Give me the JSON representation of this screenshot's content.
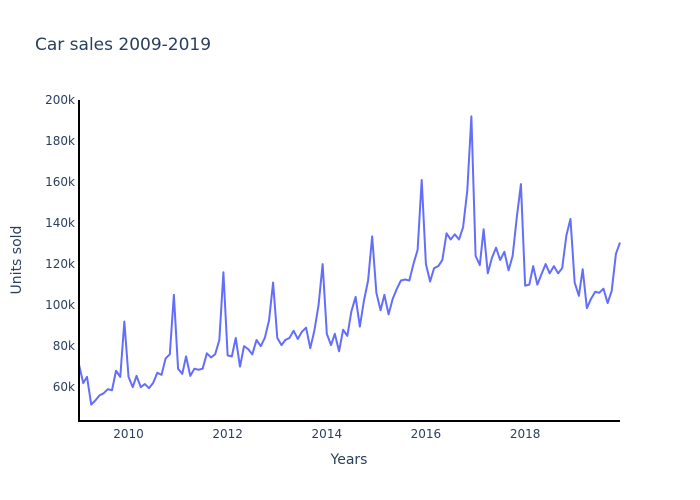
{
  "chart_data": {
    "type": "line",
    "title": "Car sales 2009-2019",
    "xlabel": "Years",
    "ylabel": "Units sold",
    "line_color": "#636efa",
    "axis_color": "#000000",
    "text_color": "#2a3f5f",
    "grid": false,
    "xlim": [
      "2009-01-01",
      "2019-12-01"
    ],
    "ylim": [
      43500,
      200000
    ],
    "x_ticks": [
      "2010",
      "2012",
      "2014",
      "2016",
      "2018"
    ],
    "y_ticks": [
      "60k",
      "80k",
      "100k",
      "120k",
      "140k",
      "160k",
      "180k",
      "200k"
    ],
    "x": [
      "2009-01",
      "2009-02",
      "2009-03",
      "2009-04",
      "2009-05",
      "2009-06",
      "2009-07",
      "2009-08",
      "2009-09",
      "2009-10",
      "2009-11",
      "2009-12",
      "2010-01",
      "2010-02",
      "2010-03",
      "2010-04",
      "2010-05",
      "2010-06",
      "2010-07",
      "2010-08",
      "2010-09",
      "2010-10",
      "2010-11",
      "2010-12",
      "2011-01",
      "2011-02",
      "2011-03",
      "2011-04",
      "2011-05",
      "2011-06",
      "2011-07",
      "2011-08",
      "2011-09",
      "2011-10",
      "2011-11",
      "2011-12",
      "2012-01",
      "2012-02",
      "2012-03",
      "2012-04",
      "2012-05",
      "2012-06",
      "2012-07",
      "2012-08",
      "2012-09",
      "2012-10",
      "2012-11",
      "2012-12",
      "2013-01",
      "2013-02",
      "2013-03",
      "2013-04",
      "2013-05",
      "2013-06",
      "2013-07",
      "2013-08",
      "2013-09",
      "2013-10",
      "2013-11",
      "2013-12",
      "2014-01",
      "2014-02",
      "2014-03",
      "2014-04",
      "2014-05",
      "2014-06",
      "2014-07",
      "2014-08",
      "2014-09",
      "2014-10",
      "2014-11",
      "2014-12",
      "2015-01",
      "2015-02",
      "2015-03",
      "2015-04",
      "2015-05",
      "2015-06",
      "2015-07",
      "2015-08",
      "2015-09",
      "2015-10",
      "2015-11",
      "2015-12",
      "2016-01",
      "2016-02",
      "2016-03",
      "2016-04",
      "2016-05",
      "2016-06",
      "2016-07",
      "2016-08",
      "2016-09",
      "2016-10",
      "2016-11",
      "2016-12",
      "2017-01",
      "2017-02",
      "2017-03",
      "2017-04",
      "2017-05",
      "2017-06",
      "2017-07",
      "2017-08",
      "2017-09",
      "2017-10",
      "2017-11",
      "2017-12",
      "2018-01",
      "2018-02",
      "2018-03",
      "2018-04",
      "2018-05",
      "2018-06",
      "2018-07",
      "2018-08",
      "2018-09",
      "2018-10",
      "2018-11",
      "2018-12",
      "2019-01",
      "2019-02",
      "2019-03",
      "2019-04",
      "2019-05",
      "2019-06",
      "2019-07",
      "2019-08",
      "2019-09",
      "2019-10",
      "2019-11",
      "2019-12"
    ],
    "y": [
      71000,
      62000,
      65000,
      51500,
      53500,
      56000,
      57000,
      59000,
      58500,
      68000,
      65000,
      92000,
      65000,
      60000,
      65500,
      60000,
      61500,
      59500,
      62000,
      67000,
      66000,
      74000,
      76000,
      105000,
      69000,
      66500,
      75000,
      65500,
      69000,
      68500,
      69000,
      76500,
      74500,
      76000,
      83000,
      116000,
      75500,
      75000,
      84000,
      70000,
      80000,
      78500,
      76000,
      83000,
      80000,
      84000,
      92500,
      111000,
      84000,
      80500,
      83000,
      84000,
      87500,
      83500,
      87000,
      89000,
      79000,
      87500,
      100000,
      120000,
      86000,
      80500,
      86000,
      77500,
      88000,
      85000,
      97000,
      104000,
      89500,
      102000,
      112000,
      133500,
      106000,
      97500,
      105000,
      95500,
      103000,
      108000,
      112000,
      112500,
      112000,
      120000,
      127000,
      161000,
      120000,
      111500,
      118000,
      119000,
      122000,
      135000,
      132000,
      134500,
      132000,
      138000,
      156000,
      192000,
      124000,
      119500,
      137000,
      115500,
      123000,
      128000,
      122000,
      126000,
      117000,
      124000,
      143000,
      159000,
      109500,
      110000,
      119000,
      110000,
      115000,
      120000,
      115500,
      119000,
      115500,
      118000,
      134000,
      142000,
      111000,
      104500,
      117500,
      98500,
      103000,
      106500,
      106000,
      108000,
      101000,
      107000,
      125000,
      130500
    ]
  }
}
